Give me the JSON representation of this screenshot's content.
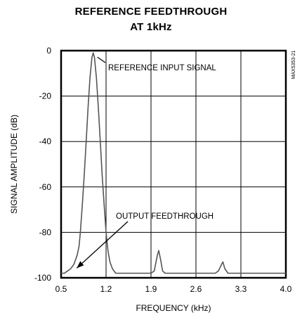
{
  "chart_data": {
    "type": "line",
    "title": "REFERENCE FEEDTHROUGH",
    "subtitle": "AT 1kHz",
    "xlabel": "FREQUENCY (kHz)",
    "ylabel": "SIGNAL AMPLITUDE (dB)",
    "xlim": [
      0.5,
      4.0
    ],
    "ylim": [
      -100,
      0
    ],
    "xticks": [
      "0.5",
      "1.2",
      "1.9",
      "2.6",
      "3.3",
      "4.0"
    ],
    "yticks": [
      "0",
      "-20",
      "-40",
      "-60",
      "-80",
      "-100"
    ],
    "grid": true,
    "figure_id": "MAX5353-21",
    "annotations": [
      {
        "text": "REFERENCE INPUT SIGNAL",
        "x": 1.0,
        "y": -1
      },
      {
        "text": "OUTPUT FEEDTHROUGH",
        "x": 0.7,
        "y": -97
      }
    ],
    "series": [
      {
        "x": [
          0.5,
          0.55,
          0.6,
          0.65,
          0.7,
          0.75,
          0.78,
          0.8,
          0.83,
          0.86,
          0.89,
          0.92,
          0.95,
          0.98,
          1.0,
          1.02,
          1.05,
          1.08,
          1.11,
          1.14,
          1.17,
          1.2,
          1.23,
          1.26,
          1.3,
          1.35,
          1.4,
          1.5,
          1.6,
          1.7,
          1.8,
          1.9,
          1.95,
          2.0,
          2.02,
          2.05,
          2.08,
          2.12,
          2.2,
          2.4,
          2.6,
          2.8,
          2.9,
          2.95,
          3.0,
          3.02,
          3.05,
          3.1,
          3.3,
          3.5,
          3.7,
          3.9,
          4.0
        ],
        "values": [
          -98,
          -98,
          -97,
          -96,
          -94,
          -90,
          -86,
          -80,
          -68,
          -55,
          -40,
          -25,
          -12,
          -3,
          -1,
          -3,
          -12,
          -25,
          -40,
          -55,
          -68,
          -80,
          -88,
          -93,
          -96,
          -98,
          -98,
          -98,
          -98,
          -98,
          -98,
          -98,
          -97,
          -90,
          -88,
          -92,
          -97,
          -98,
          -98,
          -98,
          -98,
          -98,
          -98,
          -97,
          -94,
          -93,
          -96,
          -98,
          -98,
          -98,
          -98,
          -98,
          -98
        ]
      }
    ]
  },
  "side_label": "MAX5353-21"
}
